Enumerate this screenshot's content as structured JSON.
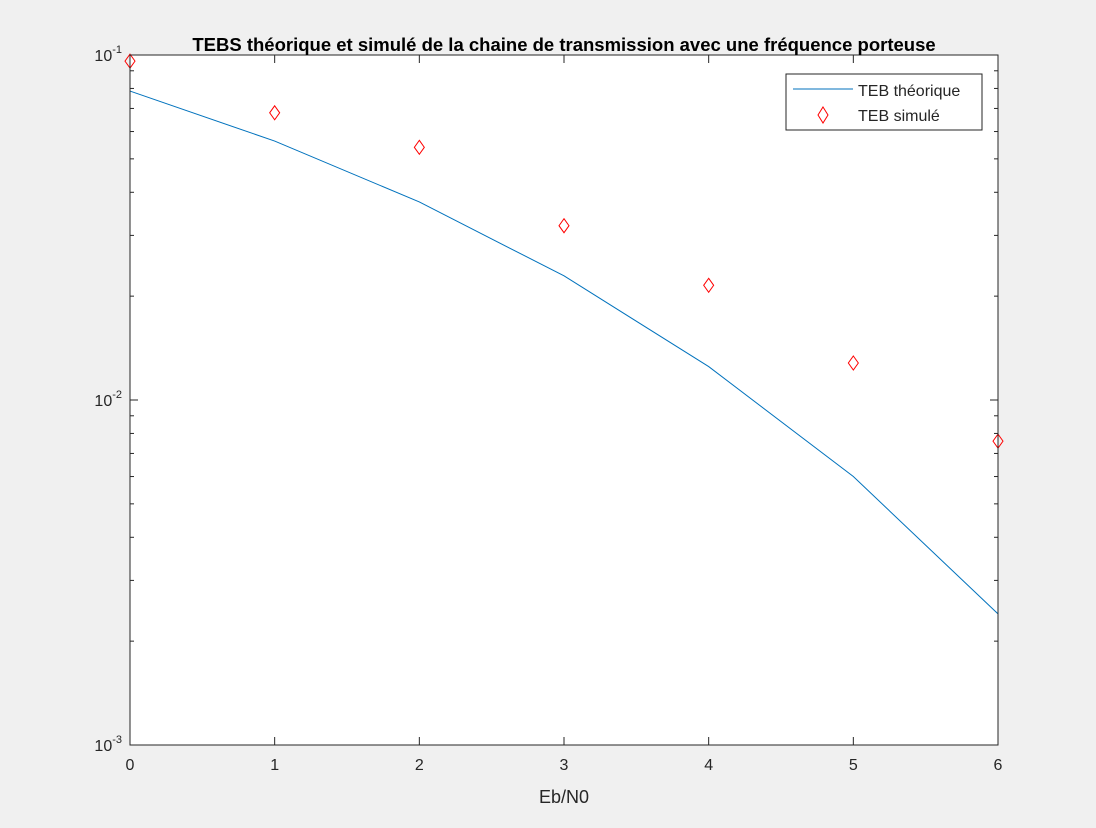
{
  "chart_data": {
    "type": "line",
    "title": "TEBS théorique et simulé de la chaine de transmission avec une fréquence porteuse",
    "xlabel": "Eb/N0",
    "ylabel": "",
    "xlim": [
      0,
      6
    ],
    "ylim": [
      0.001,
      0.1
    ],
    "yscale": "log",
    "grid": false,
    "legend_position": "top-right",
    "x_ticks": [
      "0",
      "1",
      "2",
      "3",
      "4",
      "5",
      "6"
    ],
    "y_ticks": [
      {
        "value": 0.1,
        "base": "10",
        "exp": "-1"
      },
      {
        "value": 0.01,
        "base": "10",
        "exp": "-2"
      },
      {
        "value": 0.001,
        "base": "10",
        "exp": "-3"
      }
    ],
    "series": [
      {
        "name": "TEB théorique",
        "style": "line",
        "color": "#0072bd",
        "x": [
          0,
          1,
          2,
          3,
          4,
          5,
          6
        ],
        "values": [
          0.0786,
          0.0563,
          0.0375,
          0.0229,
          0.0125,
          0.006,
          0.0024
        ]
      },
      {
        "name": "TEB simulé",
        "style": "diamond",
        "color": "#ff0000",
        "x": [
          0,
          1,
          2,
          3,
          4,
          5,
          6
        ],
        "values": [
          0.096,
          0.068,
          0.054,
          0.032,
          0.0215,
          0.0128,
          0.0076
        ]
      }
    ]
  }
}
